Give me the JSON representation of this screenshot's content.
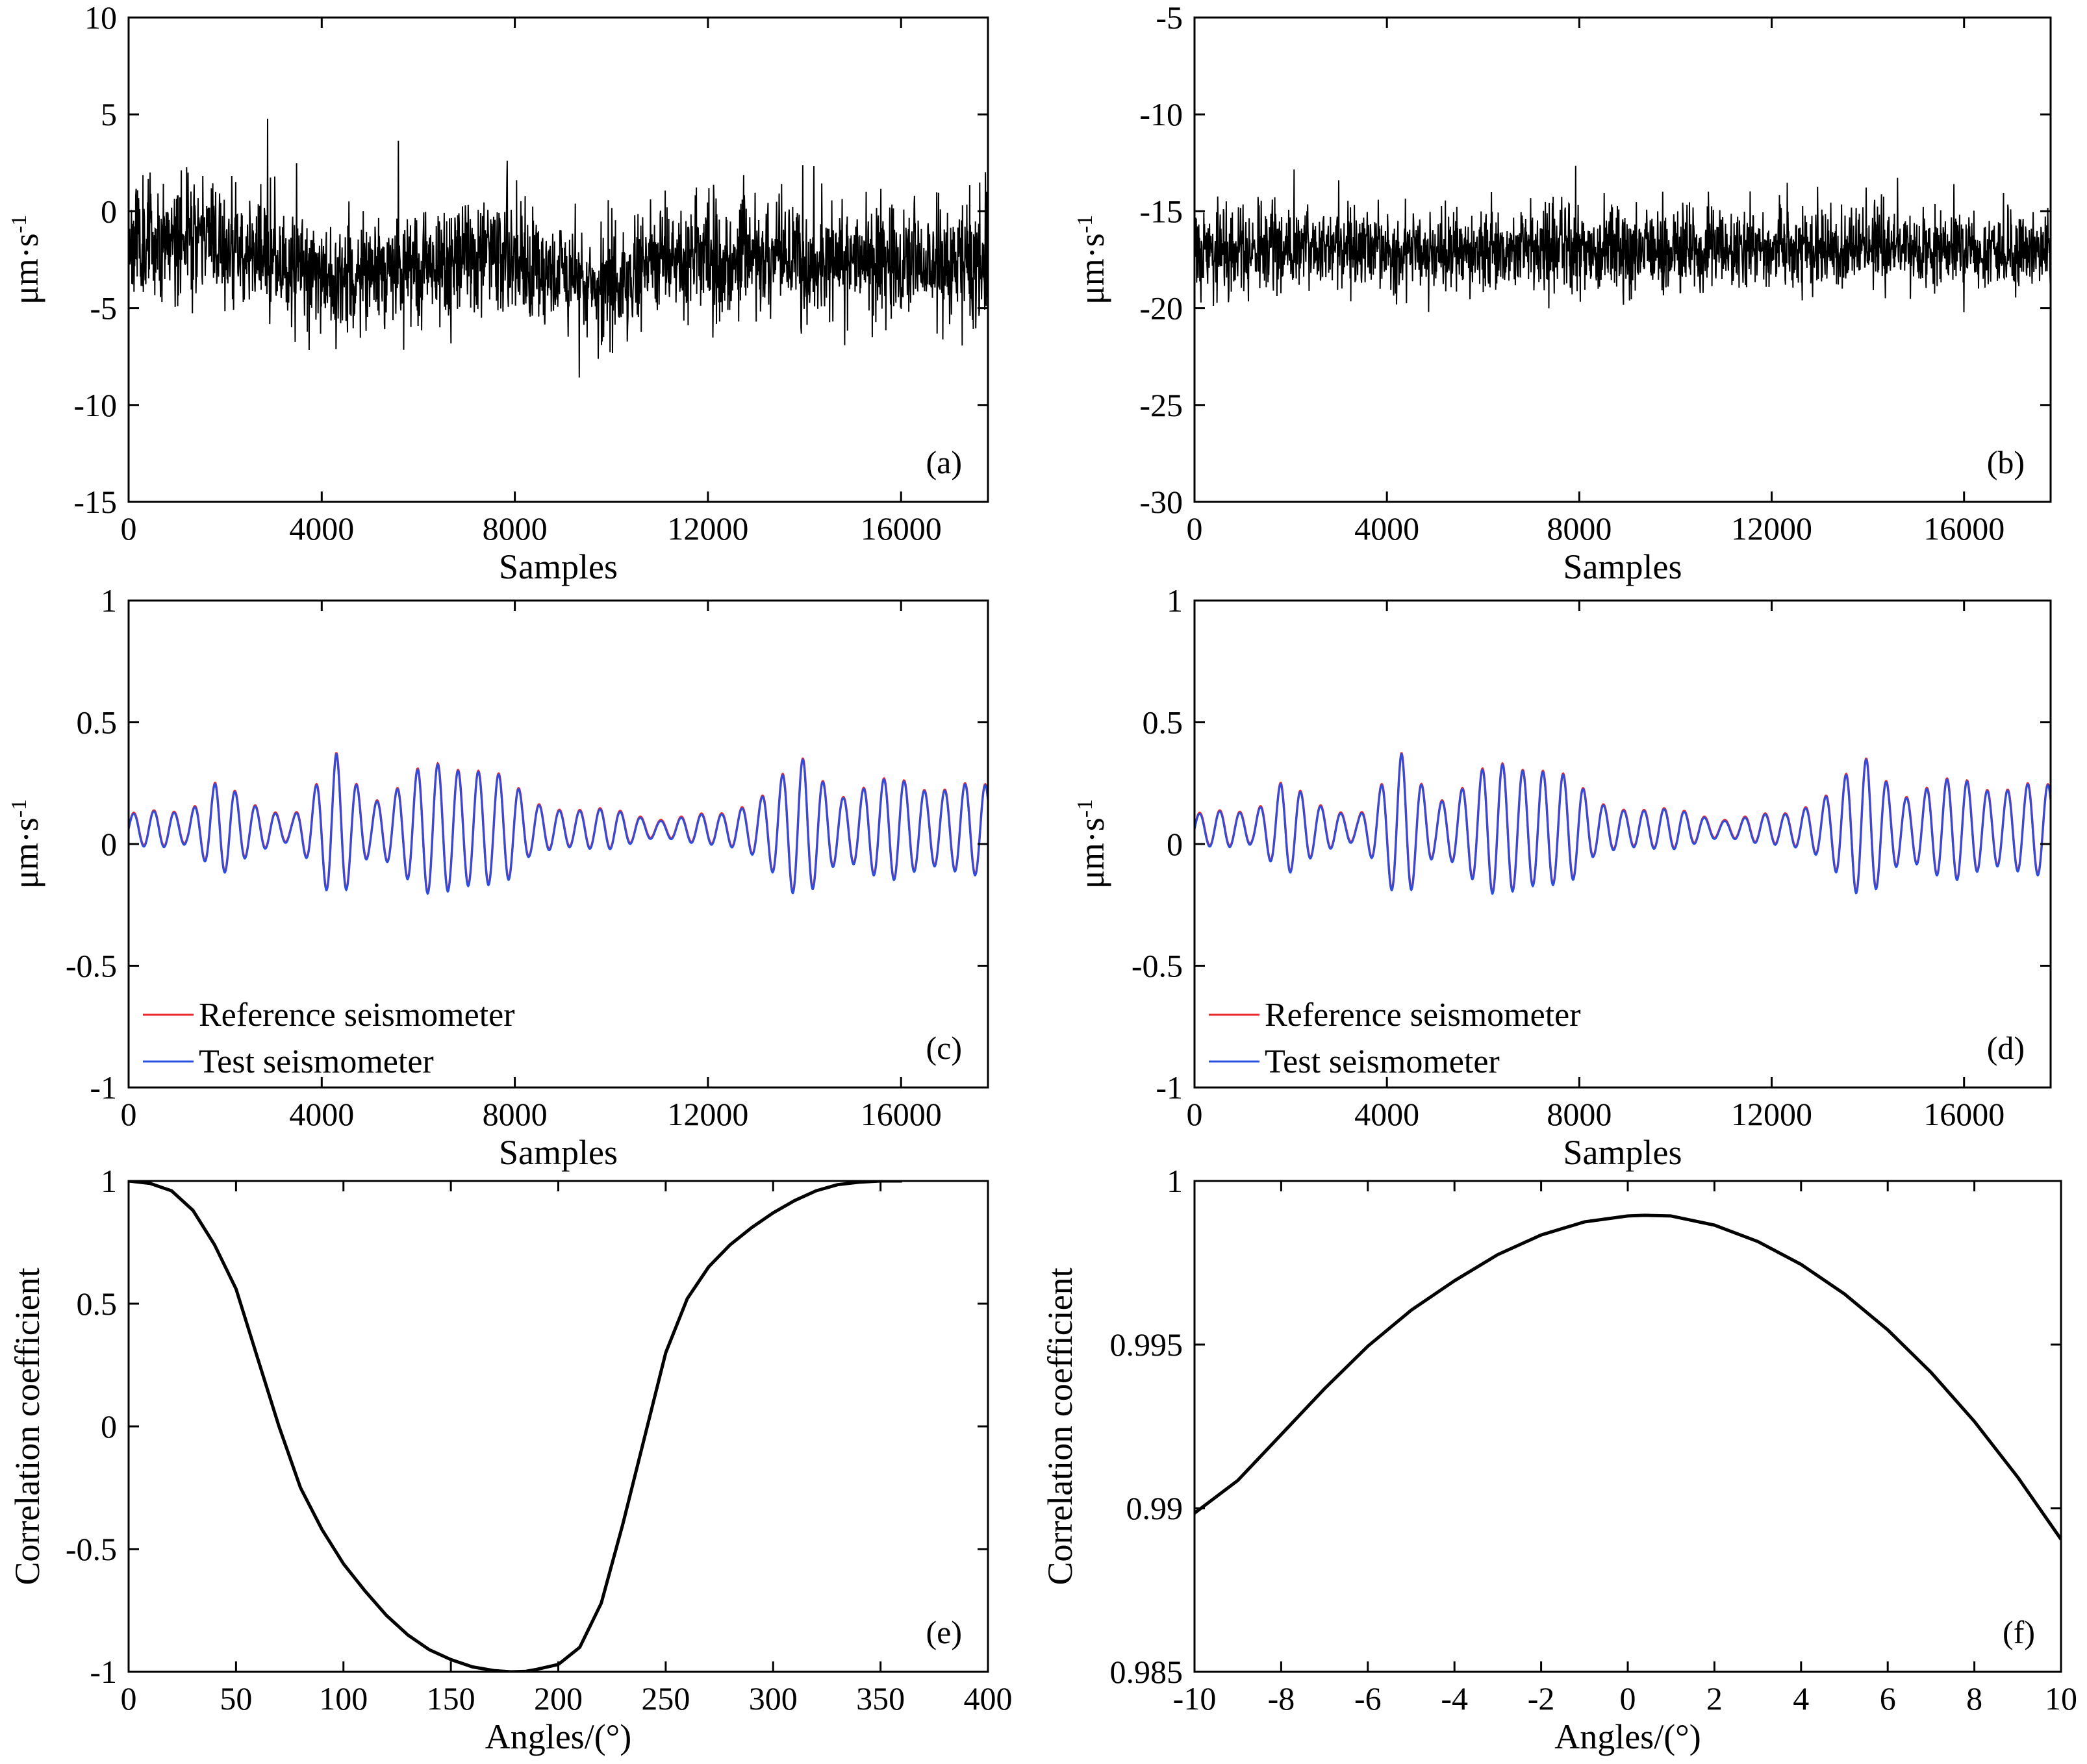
{
  "figure": {
    "panels": [
      "a",
      "b",
      "c",
      "d",
      "e",
      "f"
    ]
  },
  "chart_data": [
    {
      "id": "a",
      "tag": "(a)",
      "type": "line",
      "xlabel": "Samples",
      "ylabel": "μm·s",
      "ylabel_sup": "-1",
      "xlim": [
        0,
        17800
      ],
      "ylim": [
        -15,
        10
      ],
      "xticks": [
        0,
        4000,
        8000,
        12000,
        16000
      ],
      "xtick_labels": [
        "0",
        "4000",
        "8000",
        "12000",
        "16000"
      ],
      "yticks": [
        -15,
        -10,
        -5,
        0,
        5,
        10
      ],
      "ytick_labels": [
        "-15",
        "-10",
        "-5",
        "0",
        "5",
        "10"
      ],
      "grid": false,
      "noise": {
        "center_knots": [
          [
            0,
            -1.5
          ],
          [
            1500,
            -1.2
          ],
          [
            3000,
            -2.5
          ],
          [
            4500,
            -3.5
          ],
          [
            6000,
            -3.0
          ],
          [
            7000,
            -2.2
          ],
          [
            9000,
            -3.2
          ],
          [
            10000,
            -4.0
          ],
          [
            11000,
            -2.5
          ],
          [
            13000,
            -2.4
          ],
          [
            15000,
            -2.6
          ],
          [
            17800,
            -2.8
          ]
        ],
        "amplitude": 2.6,
        "n": 2400,
        "seed": 11
      },
      "series": [
        {
          "color": "#000000",
          "style": "noise"
        }
      ]
    },
    {
      "id": "b",
      "tag": "(b)",
      "type": "line",
      "xlabel": "Samples",
      "ylabel": "μm·s",
      "ylabel_sup": "-1",
      "xlim": [
        0,
        17800
      ],
      "ylim": [
        -30,
        -5
      ],
      "xticks": [
        0,
        4000,
        8000,
        12000,
        16000
      ],
      "xtick_labels": [
        "0",
        "4000",
        "8000",
        "12000",
        "16000"
      ],
      "yticks": [
        -30,
        -25,
        -20,
        -15,
        -10,
        -5
      ],
      "ytick_labels": [
        "-30",
        "-25",
        "-20",
        "-15",
        "-10",
        "-5"
      ],
      "grid": false,
      "noise": {
        "center_knots": [
          [
            0,
            -17.0
          ],
          [
            17800,
            -17.0
          ]
        ],
        "amplitude": 1.9,
        "n": 2400,
        "seed": 29
      },
      "series": [
        {
          "color": "#000000",
          "style": "noise"
        }
      ]
    },
    {
      "id": "c",
      "tag": "(c)",
      "type": "line",
      "xlabel": "Samples",
      "ylabel": "μm·s",
      "ylabel_sup": "-1",
      "xlim": [
        0,
        17800
      ],
      "ylim": [
        -1,
        1
      ],
      "xticks": [
        0,
        4000,
        8000,
        12000,
        16000
      ],
      "xtick_labels": [
        "0",
        "4000",
        "8000",
        "12000",
        "16000"
      ],
      "yticks": [
        -1,
        -0.5,
        0,
        0.5,
        1
      ],
      "ytick_labels": [
        "-1",
        "-0.5",
        "0",
        "0.5",
        "1"
      ],
      "grid": false,
      "legend_position": "bottom-left",
      "wave": {
        "period": 420,
        "offset": 0.06,
        "env_knots": [
          [
            0,
            0.06
          ],
          [
            1200,
            0.07
          ],
          [
            1800,
            0.2
          ],
          [
            2500,
            0.09
          ],
          [
            3400,
            0.06
          ],
          [
            4300,
            0.27
          ],
          [
            5000,
            0.12
          ],
          [
            6000,
            0.22
          ],
          [
            7200,
            0.28
          ],
          [
            7800,
            0.2
          ],
          [
            8300,
            0.1
          ],
          [
            10000,
            0.07
          ],
          [
            11000,
            0.04
          ],
          [
            12300,
            0.06
          ],
          [
            13000,
            0.13
          ],
          [
            14000,
            0.26
          ],
          [
            14800,
            0.15
          ],
          [
            16000,
            0.19
          ],
          [
            17800,
            0.16
          ]
        ]
      },
      "series": [
        {
          "name": "Reference seismometer",
          "color": "#e8282e"
        },
        {
          "name": "Test seismometer",
          "color": "#2a4fe0"
        }
      ]
    },
    {
      "id": "d",
      "tag": "(d)",
      "type": "line",
      "xlabel": "Samples",
      "ylabel": "μm·s",
      "ylabel_sup": "-1",
      "xlim": [
        0,
        17800
      ],
      "ylim": [
        -1,
        1
      ],
      "xticks": [
        0,
        4000,
        8000,
        12000,
        16000
      ],
      "xtick_labels": [
        "0",
        "4000",
        "8000",
        "12000",
        "16000"
      ],
      "yticks": [
        -1,
        -0.5,
        0,
        0.5,
        1
      ],
      "ytick_labels": [
        "-1",
        "-0.5",
        "0",
        "0.5",
        "1"
      ],
      "grid": false,
      "legend_position": "bottom-left",
      "wave": {
        "period": 420,
        "offset": 0.06,
        "env_knots": [
          [
            0,
            0.06
          ],
          [
            1200,
            0.07
          ],
          [
            1800,
            0.2
          ],
          [
            2500,
            0.09
          ],
          [
            3400,
            0.06
          ],
          [
            4300,
            0.27
          ],
          [
            5000,
            0.12
          ],
          [
            6000,
            0.22
          ],
          [
            7200,
            0.28
          ],
          [
            7800,
            0.2
          ],
          [
            8300,
            0.1
          ],
          [
            10000,
            0.07
          ],
          [
            11000,
            0.04
          ],
          [
            12300,
            0.06
          ],
          [
            13000,
            0.13
          ],
          [
            14000,
            0.26
          ],
          [
            14800,
            0.15
          ],
          [
            16000,
            0.19
          ],
          [
            17800,
            0.16
          ]
        ]
      },
      "series": [
        {
          "name": "Reference seismometer",
          "color": "#e8282e"
        },
        {
          "name": "Test seismometer",
          "color": "#2a4fe0"
        }
      ]
    },
    {
      "id": "e",
      "tag": "(e)",
      "type": "line",
      "xlabel": "Angles/(°)",
      "ylabel": "Correlation coefficient",
      "xlim": [
        0,
        400
      ],
      "ylim": [
        -1,
        1
      ],
      "xticks": [
        0,
        50,
        100,
        150,
        200,
        250,
        300,
        350,
        400
      ],
      "xtick_labels": [
        "0",
        "50",
        "100",
        "150",
        "200",
        "250",
        "300",
        "350",
        "400"
      ],
      "yticks": [
        -1,
        -0.5,
        0,
        0.5,
        1
      ],
      "ytick_labels": [
        "-1",
        "-0.5",
        "0",
        "0.5",
        "1"
      ],
      "grid": false,
      "series": [
        {
          "color": "#000000",
          "x": [
            0,
            10,
            20,
            30,
            40,
            50,
            60,
            70,
            80,
            90,
            100,
            110,
            120,
            130,
            140,
            150,
            160,
            170,
            178,
            185,
            190,
            200,
            210,
            220,
            230,
            240,
            250,
            260,
            270,
            280,
            290,
            300,
            310,
            320,
            330,
            340,
            350,
            360
          ],
          "y": [
            1.0,
            0.99,
            0.96,
            0.88,
            0.74,
            0.56,
            0.28,
            0.0,
            -0.25,
            -0.42,
            -0.56,
            -0.67,
            -0.77,
            -0.85,
            -0.91,
            -0.95,
            -0.98,
            -0.995,
            -1.0,
            -0.998,
            -0.99,
            -0.97,
            -0.9,
            -0.72,
            -0.4,
            -0.05,
            0.3,
            0.52,
            0.65,
            0.74,
            0.81,
            0.87,
            0.92,
            0.96,
            0.985,
            0.995,
            1.0,
            1.0
          ]
        }
      ]
    },
    {
      "id": "f",
      "tag": "(f)",
      "type": "line",
      "xlabel": "Angles/(°)",
      "ylabel": "Correlation coefficient",
      "xlim": [
        -10,
        10
      ],
      "ylim": [
        0.985,
        1
      ],
      "xticks": [
        -10,
        -8,
        -6,
        -4,
        -2,
        0,
        2,
        4,
        6,
        8,
        10
      ],
      "xtick_labels": [
        "-10",
        "-8",
        "-6",
        "-4",
        "-2",
        "0",
        "2",
        "4",
        "6",
        "8",
        "10"
      ],
      "yticks": [
        0.985,
        0.99,
        0.995,
        1
      ],
      "ytick_labels": [
        "0.985",
        "0.99",
        "0.995",
        "1"
      ],
      "grid": false,
      "series": [
        {
          "color": "#000000",
          "x": [
            -10,
            -9,
            -8,
            -7,
            -6,
            -5,
            -4,
            -3,
            -2,
            -1,
            0,
            0.4,
            1,
            2,
            3,
            4,
            5,
            6,
            7,
            8,
            9,
            10
          ],
          "y": [
            0.98985,
            0.99085,
            0.99225,
            0.99365,
            0.99495,
            0.99605,
            0.99695,
            0.99775,
            0.99835,
            0.99875,
            0.99893,
            0.99895,
            0.99893,
            0.99865,
            0.99815,
            0.99745,
            0.99655,
            0.99545,
            0.99415,
            0.99265,
            0.99095,
            0.98905
          ]
        }
      ]
    }
  ]
}
